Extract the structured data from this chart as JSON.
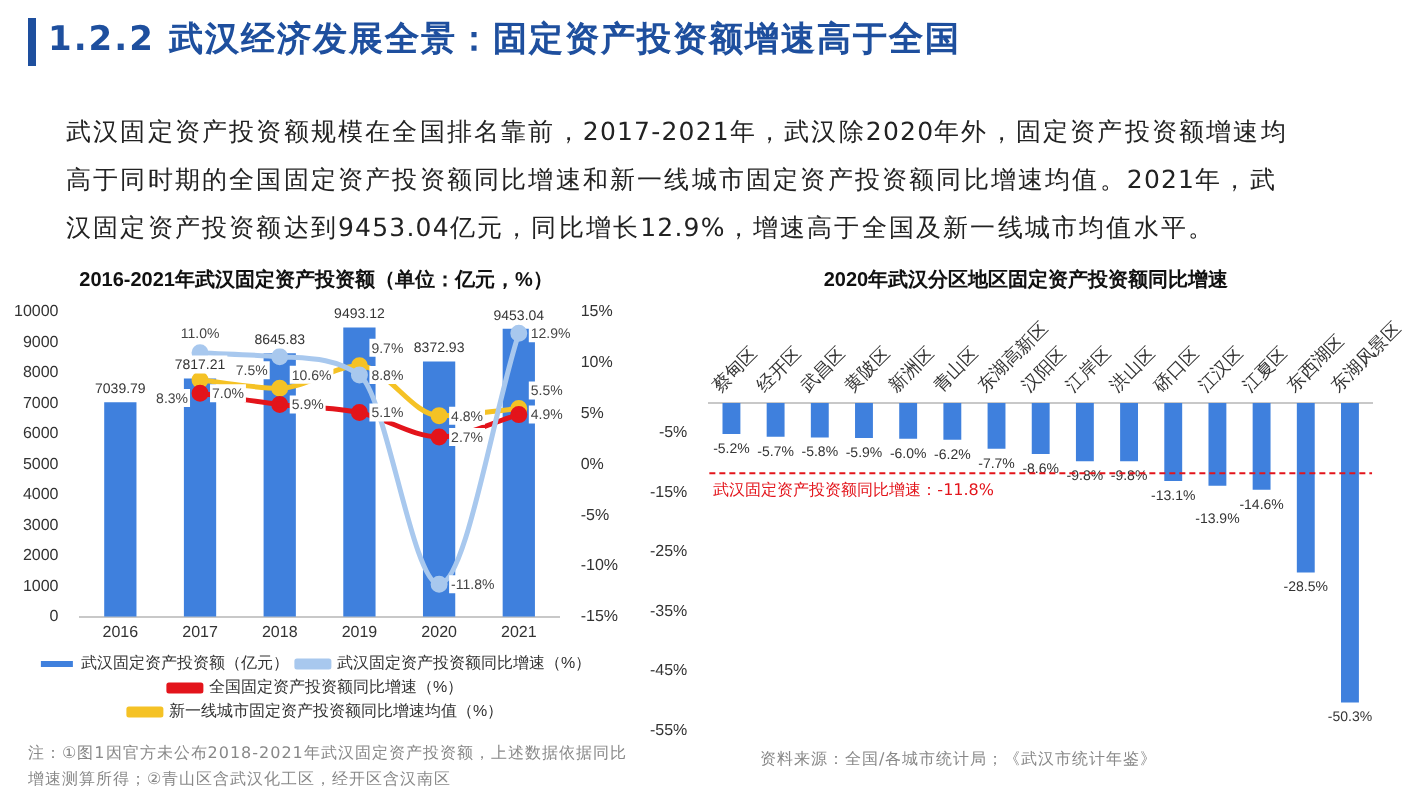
{
  "chart_data": [
    {
      "type": "other",
      "title": "1.2.2 武汉经济发展全景：固定资产投资额增速高于全国",
      "annotations": [
        "武汉固定资产投资额规模在全国排名靠前，2017-2021年，武汉除2020年外，固定资产投资额增速均",
        "高于同时期的全国固定资产投资额同比增速和新一线城市固定资产投资额同比增速均值。2021年，武",
        "汉固定资产投资额达到9453.04亿元，同比增长12.9%，增速高于全国及新一线城市均值水平。"
      ]
    },
    {
      "type": "bar",
      "title": "2016-2021年武汉固定资产投资额（单位：亿元，%）",
      "categories": [
        "2016",
        "2017",
        "2018",
        "2019",
        "2020",
        "2021"
      ],
      "series": [
        {
          "name": "武汉固定资产投资额（亿元）",
          "type": "bar",
          "color": "#3f80dd",
          "values": [
            7039.79,
            7817.21,
            8645.83,
            9493.12,
            8372.93,
            9453.04
          ],
          "value_labels": [
            "7039.79",
            "7817.21",
            "8645.83",
            "9493.12",
            "8372.93",
            "9453.04"
          ]
        },
        {
          "name": "武汉固定资产投资额同比增速（%）",
          "type": "line",
          "axis": "y2",
          "color": "#a8c8ee",
          "values": [
            null,
            11.0,
            10.6,
            8.8,
            -11.8,
            12.9
          ],
          "value_labels": [
            null,
            "11.0%",
            "10.6%",
            "8.8%",
            "-11.8%",
            "12.9%"
          ]
        },
        {
          "name": "全国固定资产投资额同比增速（%）",
          "type": "line",
          "axis": "y2",
          "color": "#e3141b",
          "values": [
            null,
            7.0,
            5.9,
            5.1,
            2.7,
            4.9
          ],
          "value_labels": [
            null,
            "7.0%",
            "5.9%",
            "5.1%",
            "2.7%",
            "4.9%"
          ]
        },
        {
          "name": "新一线城市固定资产投资额同比增速均值（%）",
          "type": "line",
          "axis": "y2",
          "color": "#f5c225",
          "values": [
            null,
            8.3,
            7.5,
            9.7,
            4.8,
            5.5
          ],
          "value_labels": [
            null,
            "8.3%",
            "7.5%",
            "9.7%",
            "4.8%",
            "5.5%"
          ]
        }
      ],
      "ylim": [
        0,
        10000
      ],
      "yticks": [
        0,
        1000,
        2000,
        3000,
        4000,
        5000,
        6000,
        7000,
        8000,
        9000,
        10000
      ],
      "y2lim": [
        -15,
        15
      ],
      "y2ticks": [
        {
          "value": -15,
          "label": "-15%"
        },
        {
          "value": -10,
          "label": "-10%"
        },
        {
          "value": -5,
          "label": "-5%"
        },
        {
          "value": 0,
          "label": "0%"
        },
        {
          "value": 5,
          "label": "5%"
        },
        {
          "value": 10,
          "label": "10%"
        },
        {
          "value": 15,
          "label": "15%"
        }
      ],
      "marker": "circle",
      "legend": "bottom",
      "annotations": [
        "注：①图1因官方未公布2018-2021年武汉固定资产投资额，上述数据依据同比增速测算所得；②青山区含武汉化工区，经开区含汉南区"
      ]
    },
    {
      "type": "bar",
      "title": "2020年武汉分区地区固定资产投资额同比增速",
      "categories": [
        "蔡甸区",
        "经开区",
        "武昌区",
        "黄陂区",
        "新洲区",
        "青山区",
        "东湖高新区",
        "汉阳区",
        "江岸区",
        "洪山区",
        "硚口区",
        "江汉区",
        "江夏区",
        "东西湖区",
        "东湖风景区"
      ],
      "values": [
        -5.2,
        -5.7,
        -5.8,
        -5.9,
        -6.0,
        -6.2,
        -7.7,
        -8.6,
        -9.8,
        -9.8,
        -13.1,
        -13.9,
        -14.6,
        -28.5,
        -50.3
      ],
      "color": "#3f80dd",
      "value_labels": [
        "-5.2%",
        "-5.7%",
        "-5.8%",
        "-5.9%",
        "-6.0%",
        "-6.2%",
        "-7.7%",
        "-8.6%",
        "-9.8%",
        "-9.8%",
        "-13.1%",
        "-13.9%",
        "-14.6%",
        "-28.5%",
        "-50.3%"
      ],
      "ylim": [
        -55,
        0
      ],
      "yticks": [
        {
          "value": -55,
          "label": "-55%"
        },
        {
          "value": -45,
          "label": "-45%"
        },
        {
          "value": -35,
          "label": "-35%"
        },
        {
          "value": -25,
          "label": "-25%"
        },
        {
          "value": -15,
          "label": "-15%"
        },
        {
          "value": -5,
          "label": "-5%"
        }
      ],
      "ref_lines": [
        {
          "axis": "y",
          "value": -11.8,
          "label": "武汉固定资产投资额同比增速：-11.8%",
          "color": "#e3141b",
          "line_style": "dashed"
        }
      ],
      "annotations": [
        "资料来源：全国/各城市统计局；《武汉市统计年鉴》"
      ]
    }
  ]
}
